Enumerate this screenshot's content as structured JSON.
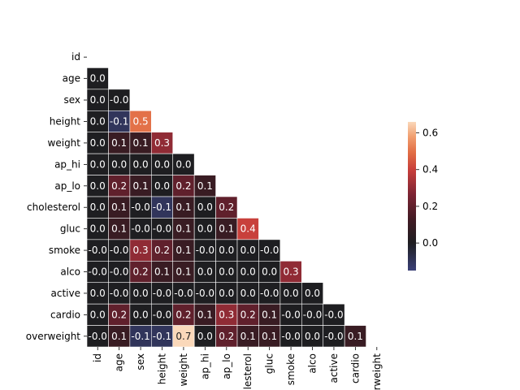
{
  "chart_data": {
    "type": "heatmap",
    "title": "",
    "xlabel": "",
    "ylabel": "",
    "mask": "upper-triangle",
    "variables": [
      "id",
      "age",
      "sex",
      "height",
      "weight",
      "ap_hi",
      "ap_lo",
      "cholesterol",
      "gluc",
      "smoke",
      "alco",
      "active",
      "cardio",
      "overweight"
    ],
    "x_tick_labels": [
      "id",
      "age",
      "sex",
      "height",
      "weight",
      "ap_hi",
      "ap_lo",
      "cholesterol",
      "gluc",
      "smoke",
      "alco",
      "active",
      "cardio",
      "overweight"
    ],
    "y_tick_labels": [
      "id",
      "age",
      "sex",
      "height",
      "weight",
      "ap_hi",
      "ap_lo",
      "cholesterol",
      "gluc",
      "smoke",
      "alco",
      "active",
      "cardio",
      "overweight"
    ],
    "values": [
      [
        null
      ],
      [
        0.0
      ],
      [
        0.0,
        -0.0
      ],
      [
        0.0,
        -0.1,
        0.5
      ],
      [
        0.0,
        0.1,
        0.1,
        0.3
      ],
      [
        0.0,
        0.0,
        0.0,
        0.0,
        0.0
      ],
      [
        0.0,
        0.2,
        0.1,
        0.0,
        0.2,
        0.1
      ],
      [
        0.0,
        0.1,
        -0.0,
        -0.1,
        0.1,
        0.0,
        0.2
      ],
      [
        0.0,
        0.1,
        -0.0,
        -0.0,
        0.1,
        0.0,
        0.1,
        0.4
      ],
      [
        -0.0,
        -0.0,
        0.3,
        0.2,
        0.1,
        -0.0,
        0.0,
        0.0,
        -0.0
      ],
      [
        -0.0,
        -0.0,
        0.2,
        0.1,
        0.1,
        0.0,
        0.0,
        0.0,
        0.0,
        0.3
      ],
      [
        0.0,
        -0.0,
        0.0,
        -0.0,
        -0.0,
        -0.0,
        0.0,
        0.0,
        -0.0,
        0.0,
        0.0
      ],
      [
        0.0,
        0.2,
        0.0,
        -0.0,
        0.2,
        0.1,
        0.3,
        0.2,
        0.1,
        -0.0,
        -0.0,
        -0.0
      ],
      [
        -0.0,
        0.1,
        -0.1,
        -0.1,
        0.7,
        0.0,
        0.2,
        0.1,
        0.1,
        -0.0,
        0.0,
        -0.0,
        0.1
      ]
    ],
    "colorbar": {
      "vmin": -0.15,
      "vmax": 0.66,
      "center": 0.0,
      "ticks": [
        0.0,
        0.2,
        0.4,
        0.6
      ],
      "tick_labels": [
        "0.0",
        "0.2",
        "0.4",
        "0.6"
      ],
      "colormap": "icefire"
    },
    "grid_line_color": "#ffffff",
    "annotation_format": "0.1f"
  }
}
